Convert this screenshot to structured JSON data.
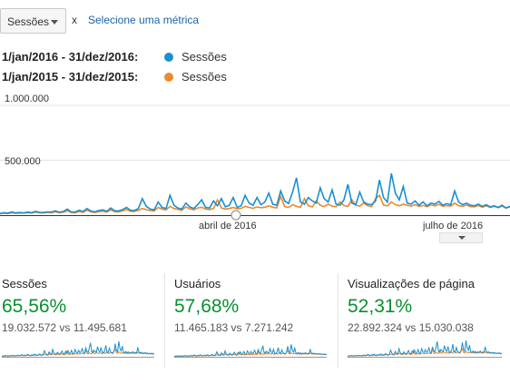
{
  "toolbar": {
    "metric_select_label": "Sessões",
    "remove_label": "x",
    "add_metric_link": "Selecione uma métrica"
  },
  "legend": [
    {
      "range": "1/jan/2016 - 31/dez/2016:",
      "series": "Sessões",
      "color": "#1a8fd0"
    },
    {
      "range": "1/jan/2015 - 31/dez/2015:",
      "series": "Sessões",
      "color": "#ec8a2c"
    }
  ],
  "chart_data": {
    "type": "line",
    "y_ticks": [
      "1.000.000",
      "500.000"
    ],
    "ylim": [
      0,
      1000000
    ],
    "x_ticks": [
      "abril de 2016",
      "julho de 2016"
    ],
    "grid": true,
    "series": [
      {
        "color": "#1a8fd0",
        "values": [
          15000,
          22000,
          18000,
          30000,
          20000,
          25000,
          21000,
          28000,
          22000,
          35000,
          26000,
          24000,
          30000,
          28000,
          40000,
          27000,
          32000,
          55000,
          30000,
          28000,
          45000,
          33000,
          60000,
          38000,
          30000,
          42000,
          48000,
          35000,
          65000,
          40000,
          38000,
          50000,
          70000,
          45000,
          42000,
          60000,
          150000,
          80000,
          55000,
          48000,
          120000,
          70000,
          60000,
          180000,
          90000,
          65000,
          55000,
          110000,
          75000,
          60000,
          95000,
          140000,
          70000,
          65000,
          130000,
          85000,
          150000,
          75000,
          90000,
          160000,
          70000,
          85000,
          180000,
          110000,
          90000,
          160000,
          95000,
          120000,
          200000,
          100000,
          90000,
          220000,
          130000,
          105000,
          210000,
          340000,
          120000,
          100000,
          160000,
          130000,
          110000,
          250000,
          150000,
          120000,
          230000,
          100000,
          90000,
          140000,
          280000,
          110000,
          95000,
          210000,
          120000,
          100000,
          95000,
          130000,
          320000,
          160000,
          120000,
          380000,
          200000,
          140000,
          260000,
          110000,
          100000,
          130000,
          90000,
          120000,
          85000,
          110000,
          100000,
          125000,
          90000,
          105000,
          95000,
          220000,
          120000,
          95000,
          110000,
          90000,
          85000,
          100000,
          80000,
          95000,
          75000,
          85000,
          70000,
          90000,
          65000,
          80000
        ]
      },
      {
        "color": "#ec8a2c",
        "values": [
          12000,
          18000,
          14000,
          22000,
          16000,
          20000,
          18000,
          23000,
          19000,
          27000,
          22000,
          20000,
          25000,
          22000,
          30000,
          22000,
          26000,
          40000,
          24000,
          22000,
          33000,
          26000,
          45000,
          30000,
          24000,
          32000,
          36000,
          28000,
          48000,
          31000,
          30000,
          38000,
          52000,
          35000,
          33000,
          44000,
          60000,
          50000,
          42000,
          38000,
          70000,
          55000,
          48000,
          80000,
          60000,
          52000,
          45000,
          75000,
          58000,
          48000,
          65000,
          72000,
          55000,
          50000,
          60000,
          140000,
          65000,
          55000,
          60000,
          70000,
          58000,
          62000,
          80000,
          70000,
          62000,
          75000,
          68000,
          72000,
          85000,
          72000,
          66000,
          170000,
          78000,
          70000,
          95000,
          80000,
          72000,
          150000,
          85000,
          74000,
          130000,
          90000,
          78000,
          100000,
          82000,
          76000,
          120000,
          88000,
          80000,
          140000,
          90000,
          82000,
          110000,
          86000,
          78000,
          150000,
          180000,
          92000,
          84000,
          120000,
          96000,
          85000,
          100000,
          90000,
          82000,
          95000,
          80000,
          88000,
          78000,
          92000,
          84000,
          98000,
          80000,
          88000,
          82000,
          110000,
          86000,
          80000,
          92000,
          78000,
          76000,
          88000,
          72000,
          84000,
          70000,
          80000,
          68000,
          82000,
          64000,
          76000
        ]
      }
    ]
  },
  "scorecards": [
    {
      "name": "Sessões",
      "percent": "65,56%",
      "comparison": "19.032.572 vs 11.495.681"
    },
    {
      "name": "Usuários",
      "percent": "57,68%",
      "comparison": "11.465.183 vs 7.271.242"
    },
    {
      "name": "Visualizações de página",
      "percent": "52,31%",
      "comparison": "22.892.324 vs 15.030.038"
    }
  ]
}
